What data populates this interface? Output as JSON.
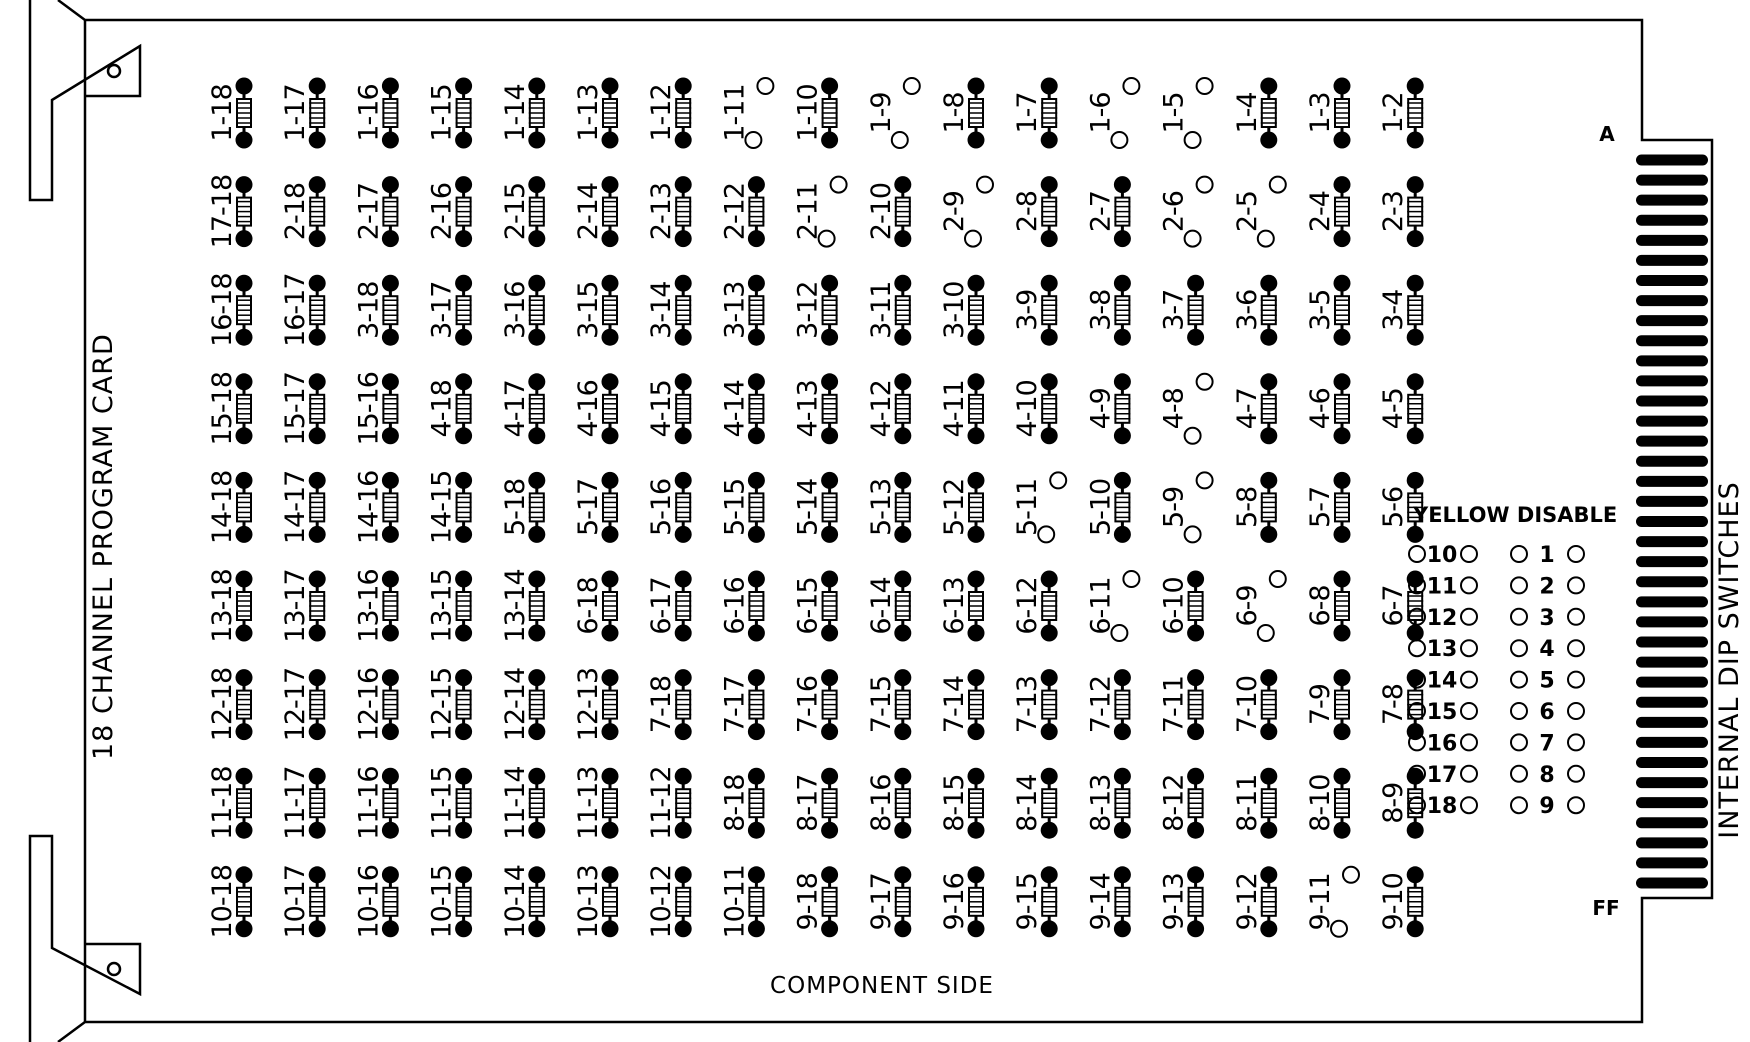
{
  "card": {
    "title": "18 CHANNEL PROGRAM CARD",
    "bottom_label": "COMPONENT SIDE",
    "right_label": "INTERNAL DIP SWITCHES",
    "edge_top_label": "A",
    "edge_bottom_label": "FF",
    "edge_finger_count": 37,
    "colors": {
      "ink": "#000000",
      "paper": "#ffffff"
    }
  },
  "grid": {
    "comment_rows_top_to_bottom": "cells listed per row, left to right; jumper true = jumper installed (filled pads), false = open pads",
    "rows": [
      [
        [
          "1-18",
          true
        ],
        [
          "1-17",
          true
        ],
        [
          "1-16",
          true
        ],
        [
          "1-15",
          true
        ],
        [
          "1-14",
          true
        ],
        [
          "1-13",
          true
        ],
        [
          "1-12",
          true
        ],
        [
          "1-11",
          false
        ],
        [
          "1-10",
          true
        ],
        [
          "1-9",
          false
        ],
        [
          "1-8",
          true
        ],
        [
          "1-7",
          true
        ],
        [
          "1-6",
          false
        ],
        [
          "1-5",
          false
        ],
        [
          "1-4",
          true
        ],
        [
          "1-3",
          true
        ],
        [
          "1-2",
          true
        ]
      ],
      [
        [
          "17-18",
          true
        ],
        [
          "2-18",
          true
        ],
        [
          "2-17",
          true
        ],
        [
          "2-16",
          true
        ],
        [
          "2-15",
          true
        ],
        [
          "2-14",
          true
        ],
        [
          "2-13",
          true
        ],
        [
          "2-12",
          true
        ],
        [
          "2-11",
          false
        ],
        [
          "2-10",
          true
        ],
        [
          "2-9",
          false
        ],
        [
          "2-8",
          true
        ],
        [
          "2-7",
          true
        ],
        [
          "2-6",
          false
        ],
        [
          "2-5",
          false
        ],
        [
          "2-4",
          true
        ],
        [
          "2-3",
          true
        ]
      ],
      [
        [
          "16-18",
          true
        ],
        [
          "16-17",
          true
        ],
        [
          "3-18",
          true
        ],
        [
          "3-17",
          true
        ],
        [
          "3-16",
          true
        ],
        [
          "3-15",
          true
        ],
        [
          "3-14",
          true
        ],
        [
          "3-13",
          true
        ],
        [
          "3-12",
          true
        ],
        [
          "3-11",
          true
        ],
        [
          "3-10",
          true
        ],
        [
          "3-9",
          true
        ],
        [
          "3-8",
          true
        ],
        [
          "3-7",
          true
        ],
        [
          "3-6",
          true
        ],
        [
          "3-5",
          true
        ],
        [
          "3-4",
          true
        ]
      ],
      [
        [
          "15-18",
          true
        ],
        [
          "15-17",
          true
        ],
        [
          "15-16",
          true
        ],
        [
          "4-18",
          true
        ],
        [
          "4-17",
          true
        ],
        [
          "4-16",
          true
        ],
        [
          "4-15",
          true
        ],
        [
          "4-14",
          true
        ],
        [
          "4-13",
          true
        ],
        [
          "4-12",
          true
        ],
        [
          "4-11",
          true
        ],
        [
          "4-10",
          true
        ],
        [
          "4-9",
          true
        ],
        [
          "4-8",
          false
        ],
        [
          "4-7",
          true
        ],
        [
          "4-6",
          true
        ],
        [
          "4-5",
          true
        ]
      ],
      [
        [
          "14-18",
          true
        ],
        [
          "14-17",
          true
        ],
        [
          "14-16",
          true
        ],
        [
          "14-15",
          true
        ],
        [
          "5-18",
          true
        ],
        [
          "5-17",
          true
        ],
        [
          "5-16",
          true
        ],
        [
          "5-15",
          true
        ],
        [
          "5-14",
          true
        ],
        [
          "5-13",
          true
        ],
        [
          "5-12",
          true
        ],
        [
          "5-11",
          false
        ],
        [
          "5-10",
          true
        ],
        [
          "5-9",
          false
        ],
        [
          "5-8",
          true
        ],
        [
          "5-7",
          true
        ],
        [
          "5-6",
          true
        ]
      ],
      [
        [
          "13-18",
          true
        ],
        [
          "13-17",
          true
        ],
        [
          "13-16",
          true
        ],
        [
          "13-15",
          true
        ],
        [
          "13-14",
          true
        ],
        [
          "6-18",
          true
        ],
        [
          "6-17",
          true
        ],
        [
          "6-16",
          true
        ],
        [
          "6-15",
          true
        ],
        [
          "6-14",
          true
        ],
        [
          "6-13",
          true
        ],
        [
          "6-12",
          true
        ],
        [
          "6-11",
          false
        ],
        [
          "6-10",
          true
        ],
        [
          "6-9",
          false
        ],
        [
          "6-8",
          true
        ],
        [
          "6-7",
          true
        ]
      ],
      [
        [
          "12-18",
          true
        ],
        [
          "12-17",
          true
        ],
        [
          "12-16",
          true
        ],
        [
          "12-15",
          true
        ],
        [
          "12-14",
          true
        ],
        [
          "12-13",
          true
        ],
        [
          "7-18",
          true
        ],
        [
          "7-17",
          true
        ],
        [
          "7-16",
          true
        ],
        [
          "7-15",
          true
        ],
        [
          "7-14",
          true
        ],
        [
          "7-13",
          true
        ],
        [
          "7-12",
          true
        ],
        [
          "7-11",
          true
        ],
        [
          "7-10",
          true
        ],
        [
          "7-9",
          true
        ],
        [
          "7-8",
          true
        ]
      ],
      [
        [
          "11-18",
          true
        ],
        [
          "11-17",
          true
        ],
        [
          "11-16",
          true
        ],
        [
          "11-15",
          true
        ],
        [
          "11-14",
          true
        ],
        [
          "11-13",
          true
        ],
        [
          "11-12",
          true
        ],
        [
          "8-18",
          true
        ],
        [
          "8-17",
          true
        ],
        [
          "8-16",
          true
        ],
        [
          "8-15",
          true
        ],
        [
          "8-14",
          true
        ],
        [
          "8-13",
          true
        ],
        [
          "8-12",
          true
        ],
        [
          "8-11",
          true
        ],
        [
          "8-10",
          true
        ],
        [
          "8-9",
          true
        ]
      ],
      [
        [
          "10-18",
          true
        ],
        [
          "10-17",
          true
        ],
        [
          "10-16",
          true
        ],
        [
          "10-15",
          true
        ],
        [
          "10-14",
          true
        ],
        [
          "10-13",
          true
        ],
        [
          "10-12",
          true
        ],
        [
          "10-11",
          true
        ],
        [
          "9-18",
          true
        ],
        [
          "9-17",
          true
        ],
        [
          "9-16",
          true
        ],
        [
          "9-15",
          true
        ],
        [
          "9-14",
          true
        ],
        [
          "9-13",
          true
        ],
        [
          "9-12",
          true
        ],
        [
          "9-11",
          false
        ],
        [
          "9-10",
          true
        ]
      ]
    ]
  },
  "yellow_disable": {
    "title": "YELLOW DISABLE",
    "left_numbers": [
      "10",
      "11",
      "12",
      "13",
      "14",
      "15",
      "16",
      "17",
      "18"
    ],
    "right_numbers": [
      "1",
      "2",
      "3",
      "4",
      "5",
      "6",
      "7",
      "8",
      "9"
    ]
  }
}
